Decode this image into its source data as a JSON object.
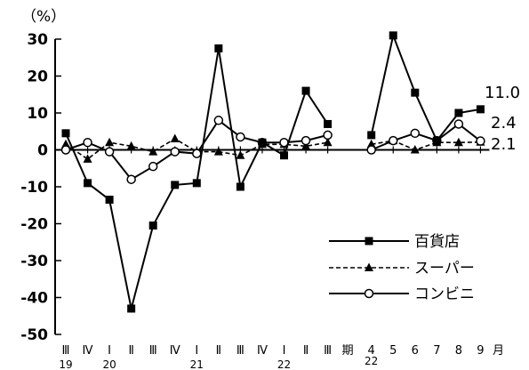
{
  "chart_data": {
    "type": "line",
    "ylabel": "（%）",
    "ylim": [
      -50,
      30
    ],
    "y_ticks": [
      30,
      20,
      10,
      0,
      -10,
      -20,
      -30,
      -40,
      -50
    ],
    "y_tick_labels": [
      "30",
      "20",
      "10",
      "0",
      "-10",
      "-20",
      "-30",
      "-40",
      "-50"
    ],
    "categories": [
      "Ⅲ",
      "Ⅳ",
      "Ⅰ",
      "Ⅱ",
      "Ⅲ",
      "Ⅳ",
      "Ⅰ",
      "Ⅱ",
      "Ⅲ",
      "Ⅳ",
      "Ⅰ",
      "Ⅱ",
      "Ⅲ",
      "期",
      "4",
      "5",
      "6",
      "7",
      "8",
      "9",
      "月"
    ],
    "year_labels": [
      {
        "label": "19",
        "category_index": 0
      },
      {
        "label": "20",
        "category_index": 2
      },
      {
        "label": "21",
        "category_index": 6
      },
      {
        "label": "22",
        "category_index": 10
      },
      {
        "label": "22",
        "category_index": 14
      }
    ],
    "grid": false,
    "legend_position": "bottom-right",
    "series": [
      {
        "name": "百貨店",
        "marker": "square-filled",
        "dash": "solid",
        "segments": [
          {
            "indices": [
              0,
              1,
              2,
              3,
              4,
              5,
              6,
              7,
              8,
              9,
              10,
              11,
              12
            ],
            "values": [
              4.5,
              -9,
              -13.5,
              -43,
              -20.5,
              -9.5,
              -9,
              27.5,
              -10,
              2,
              -1.5,
              16,
              7
            ]
          },
          {
            "indices": [
              14,
              15,
              16,
              17,
              18,
              19
            ],
            "values": [
              4,
              31,
              15.5,
              2.5,
              10,
              11
            ]
          }
        ],
        "end_label": "11.0"
      },
      {
        "name": "スーパー",
        "marker": "triangle-filled",
        "dash": "dashed",
        "segments": [
          {
            "indices": [
              0,
              1,
              2,
              3,
              4,
              5,
              6,
              7,
              8,
              9,
              10,
              11,
              12
            ],
            "values": [
              1.5,
              -2.5,
              2,
              1,
              -0.5,
              3,
              -0.5,
              -0.5,
              -1.5,
              1.5,
              1.5,
              1,
              2
            ]
          },
          {
            "indices": [
              14,
              15,
              16,
              17,
              18,
              19
            ],
            "values": [
              1.5,
              2.5,
              0,
              2,
              2,
              2.1
            ]
          }
        ],
        "end_label": "2.1"
      },
      {
        "name": "コンビニ",
        "marker": "circle-open",
        "dash": "solid",
        "segments": [
          {
            "indices": [
              0,
              1,
              2,
              3,
              4,
              5,
              6,
              7,
              8,
              9,
              10,
              11,
              12
            ],
            "values": [
              0,
              2,
              -0.5,
              -8,
              -4.5,
              -0.5,
              -1,
              8,
              3.5,
              2,
              2,
              2.5,
              4
            ]
          },
          {
            "indices": [
              14,
              15,
              16,
              17,
              18,
              19
            ],
            "values": [
              0,
              2.5,
              4.5,
              2.5,
              7,
              2.4
            ]
          }
        ],
        "end_label": "2.4"
      }
    ]
  }
}
